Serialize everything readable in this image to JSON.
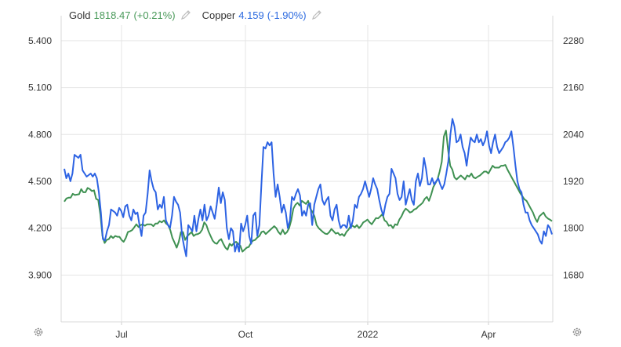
{
  "legend": {
    "gold": {
      "name": "Gold",
      "value": "1818.47",
      "change": "(+0.21%)"
    },
    "copper": {
      "name": "Copper",
      "value": "4.159",
      "change": "(-1.90%)"
    }
  },
  "colors": {
    "gold": "#3f9152",
    "copper": "#2d63e3",
    "grid": "#e6e6e6"
  },
  "icons": {
    "legend_edit": "pencil-icon",
    "settings": "gear-icon"
  },
  "chart_data": {
    "type": "line",
    "x_tick_labels": [
      "Jul",
      "Oct",
      "2022",
      "Apr"
    ],
    "left_axis": {
      "ticks": [
        "5.400",
        "5.100",
        "4.800",
        "4.500",
        "4.200",
        "3.900"
      ],
      "ylim": [
        3.6,
        5.5
      ]
    },
    "right_axis": {
      "ticks": [
        "2280",
        "2160",
        "2040",
        "1920",
        "1800",
        "1680"
      ],
      "ylim": [
        1560,
        2320
      ]
    },
    "series": [
      {
        "name": "Copper",
        "axis": "left",
        "values": [
          4.58,
          4.52,
          4.55,
          4.5,
          4.55,
          4.67,
          4.66,
          4.65,
          4.67,
          4.57,
          4.55,
          4.53,
          4.54,
          4.55,
          4.53,
          4.55,
          4.52,
          4.43,
          4.3,
          4.13,
          4.12,
          4.18,
          4.22,
          4.32,
          4.31,
          4.3,
          4.28,
          4.33,
          4.31,
          4.27,
          4.34,
          4.35,
          4.28,
          4.25,
          4.32,
          4.29,
          4.3,
          4.22,
          4.15,
          4.28,
          4.3,
          4.42,
          4.57,
          4.5,
          4.45,
          4.43,
          4.32,
          4.35,
          4.33,
          4.4,
          4.25,
          4.22,
          4.2,
          4.28,
          4.4,
          4.37,
          4.35,
          4.3,
          4.15,
          4.08,
          4.02,
          4.22,
          4.2,
          4.18,
          4.28,
          4.18,
          4.26,
          4.32,
          4.25,
          4.35,
          4.25,
          4.28,
          4.34,
          4.3,
          4.26,
          4.35,
          4.46,
          4.36,
          4.43,
          4.38,
          4.2,
          4.13,
          4.2,
          4.18,
          4.05,
          4.1,
          4.05,
          4.23,
          4.18,
          4.22,
          4.28,
          4.15,
          4.1,
          4.28,
          4.3,
          4.15,
          4.22,
          4.48,
          4.72,
          4.71,
          4.75,
          4.73,
          4.75,
          4.55,
          4.4,
          4.48,
          4.4,
          4.3,
          4.35,
          4.3,
          4.2,
          4.25,
          4.4,
          4.38,
          4.42,
          4.45,
          4.41,
          4.28,
          4.31,
          4.28,
          4.35,
          4.36,
          4.22,
          4.35,
          4.4,
          4.45,
          4.48,
          4.38,
          4.35,
          4.38,
          4.4,
          4.28,
          4.25,
          4.32,
          4.35,
          4.25,
          4.2,
          4.22,
          4.22,
          4.2,
          4.28,
          4.2,
          4.25,
          4.35,
          4.33,
          4.4,
          4.42,
          4.45,
          4.5,
          4.45,
          4.4,
          4.45,
          4.52,
          4.48,
          4.45,
          4.38,
          4.32,
          4.28,
          4.35,
          4.4,
          4.42,
          4.58,
          4.55,
          4.52,
          4.42,
          4.38,
          4.4,
          4.5,
          4.35,
          4.4,
          4.45,
          4.38,
          4.35,
          4.5,
          4.55,
          4.47,
          4.52,
          4.65,
          4.58,
          4.48,
          4.48,
          4.52,
          4.48,
          4.5,
          4.52,
          4.48,
          4.45,
          4.48,
          4.55,
          4.63,
          4.8,
          4.9,
          4.85,
          4.75,
          4.76,
          4.8,
          4.72,
          4.68,
          4.6,
          4.7,
          4.78,
          4.76,
          4.75,
          4.8,
          4.75,
          4.77,
          4.73,
          4.76,
          4.82,
          4.73,
          4.68,
          4.75,
          4.8,
          4.72,
          4.68,
          4.7,
          4.72,
          4.75,
          4.76,
          4.78,
          4.82,
          4.72,
          4.6,
          4.5,
          4.45,
          4.43,
          4.35,
          4.3,
          4.3,
          4.25,
          4.22,
          4.2,
          4.18,
          4.16,
          4.12,
          4.1,
          4.18,
          4.15,
          4.22,
          4.2,
          4.16
        ]
      },
      {
        "name": "Gold",
        "axis": "right",
        "values": [
          1868,
          1876,
          1878,
          1878,
          1888,
          1885,
          1886,
          1887,
          1900,
          1892,
          1892,
          1903,
          1900,
          1895,
          1897,
          1875,
          1872,
          1835,
          1780,
          1762,
          1770,
          1772,
          1780,
          1775,
          1780,
          1778,
          1778,
          1770,
          1765,
          1775,
          1790,
          1792,
          1795,
          1802,
          1810,
          1803,
          1808,
          1810,
          1806,
          1810,
          1810,
          1810,
          1805,
          1812,
          1812,
          1818,
          1815,
          1820,
          1812,
          1808,
          1795,
          1775,
          1763,
          1750,
          1765,
          1790,
          1790,
          1770,
          1780,
          1785,
          1790,
          1780,
          1784,
          1785,
          1788,
          1796,
          1815,
          1808,
          1792,
          1780,
          1768,
          1762,
          1760,
          1768,
          1772,
          1760,
          1750,
          1745,
          1760,
          1755,
          1762,
          1765,
          1760,
          1755,
          1740,
          1745,
          1750,
          1752,
          1762,
          1768,
          1770,
          1776,
          1780,
          1790,
          1792,
          1785,
          1790,
          1795,
          1800,
          1805,
          1800,
          1790,
          1784,
          1796,
          1785,
          1790,
          1800,
          1820,
          1850,
          1860,
          1865,
          1858,
          1870,
          1866,
          1862,
          1870,
          1850,
          1842,
          1830,
          1808,
          1800,
          1795,
          1790,
          1786,
          1785,
          1790,
          1798,
          1792,
          1786,
          1788,
          1782,
          1785,
          1780,
          1790,
          1796,
          1805,
          1806,
          1802,
          1808,
          1800,
          1806,
          1815,
          1818,
          1822,
          1815,
          1810,
          1818,
          1826,
          1825,
          1830,
          1836,
          1820,
          1816,
          1806,
          1808,
          1800,
          1810,
          1808,
          1822,
          1830,
          1842,
          1850,
          1846,
          1840,
          1842,
          1848,
          1850,
          1856,
          1860,
          1865,
          1875,
          1880,
          1870,
          1886,
          1905,
          1915,
          1925,
          1945,
          1970,
          2035,
          2050,
          2000,
          1960,
          1950,
          1930,
          1925,
          1930,
          1935,
          1930,
          1925,
          1935,
          1932,
          1940,
          1930,
          1928,
          1932,
          1935,
          1940,
          1945,
          1945,
          1940,
          1950,
          1960,
          1955,
          1955,
          1955,
          1960,
          1960,
          1962,
          1950,
          1940,
          1930,
          1920,
          1910,
          1900,
          1890,
          1882,
          1874,
          1870,
          1860,
          1850,
          1840,
          1826,
          1816,
          1830,
          1835,
          1840,
          1830,
          1825,
          1822,
          1818
        ]
      }
    ]
  }
}
